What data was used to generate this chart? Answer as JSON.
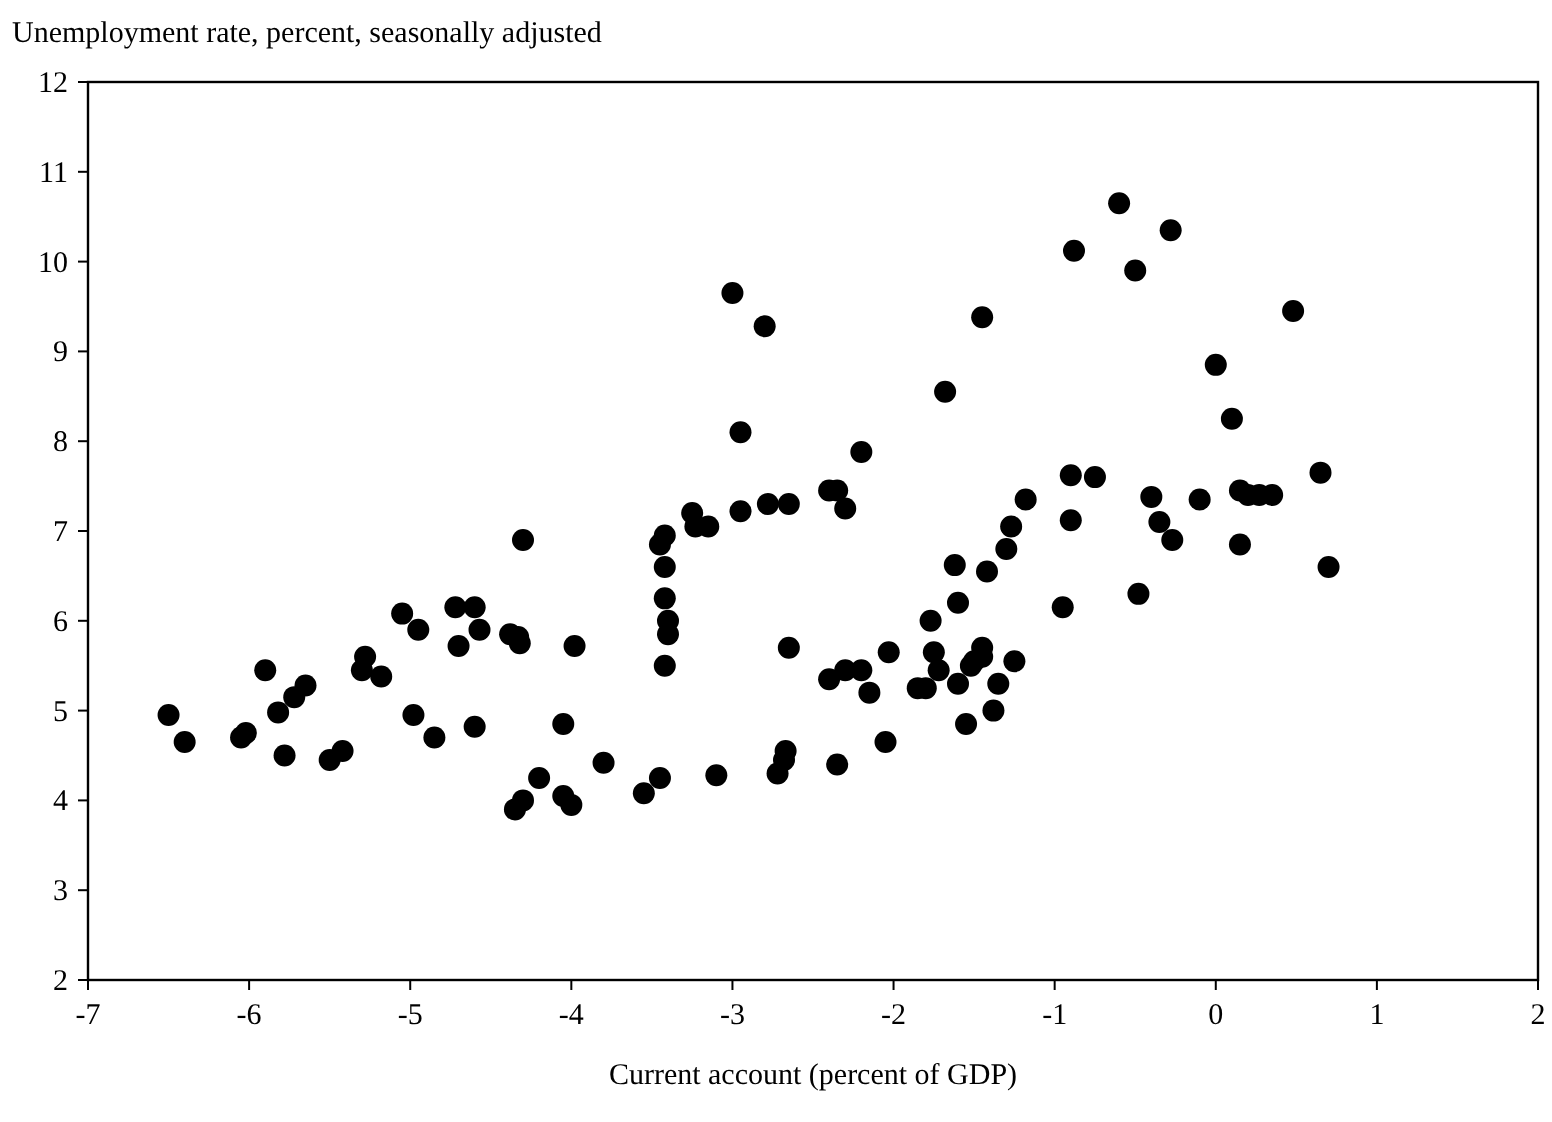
{
  "chart_data": {
    "type": "scatter",
    "ylabel": "Unemployment rate, percent, seasonally adjusted",
    "xlabel": "Current account (percent of GDP)",
    "xlim": [
      -7,
      2
    ],
    "xticks": [
      -7,
      -6,
      -5,
      -4,
      -3,
      -2,
      -1,
      0,
      1,
      2
    ],
    "ylim": [
      2,
      12
    ],
    "yticks": [
      2,
      3,
      4,
      5,
      6,
      7,
      8,
      9,
      10,
      11,
      12
    ],
    "grid": false,
    "marker": "circle",
    "series": [
      {
        "color": "#000000",
        "x": [
          -6.5,
          -6.4,
          -6.05,
          -6.02,
          -5.9,
          -5.82,
          -5.78,
          -5.72,
          -5.65,
          -5.5,
          -5.42,
          -5.3,
          -5.28,
          -5.18,
          -5.05,
          -4.98,
          -4.95,
          -4.85,
          -4.72,
          -4.7,
          -4.6,
          -4.6,
          -4.57,
          -4.38,
          -4.33,
          -4.32,
          -4.3,
          -4.35,
          -4.3,
          -4.2,
          -4.05,
          -4.05,
          -4.0,
          -3.98,
          -3.8,
          -3.55,
          -3.45,
          -3.45,
          -3.42,
          -3.42,
          -3.42,
          -3.4,
          -3.4,
          -3.42,
          -3.25,
          -3.23,
          -3.15,
          -3.1,
          -3.0,
          -2.95,
          -2.95,
          -2.8,
          -2.78,
          -2.72,
          -2.68,
          -2.67,
          -2.65,
          -2.65,
          -2.4,
          -2.35,
          -2.3,
          -2.2,
          -2.35,
          -2.4,
          -2.3,
          -2.2,
          -2.15,
          -2.05,
          -2.03,
          -1.85,
          -1.8,
          -1.77,
          -1.75,
          -1.72,
          -1.68,
          -1.62,
          -1.6,
          -1.6,
          -1.55,
          -1.52,
          -1.5,
          -1.45,
          -1.45,
          -1.45,
          -1.42,
          -1.38,
          -1.35,
          -1.3,
          -1.27,
          -1.25,
          -1.18,
          -0.95,
          -0.9,
          -0.9,
          -0.88,
          -0.75,
          -0.6,
          -0.5,
          -0.48,
          -0.4,
          -0.35,
          -0.28,
          -0.27,
          -0.1,
          0.0,
          0.1,
          0.15,
          0.15,
          0.2,
          0.27,
          0.35,
          0.48,
          0.65,
          0.7
        ],
        "values": [
          4.95,
          4.65,
          4.7,
          4.75,
          5.45,
          4.98,
          4.5,
          5.15,
          5.28,
          4.45,
          4.55,
          5.45,
          5.6,
          5.38,
          6.08,
          4.95,
          5.9,
          4.7,
          6.15,
          5.72,
          6.15,
          4.82,
          5.9,
          5.85,
          5.82,
          5.75,
          6.9,
          3.9,
          4.0,
          4.25,
          4.85,
          4.05,
          3.95,
          5.72,
          4.42,
          4.08,
          4.25,
          6.85,
          6.95,
          6.6,
          6.25,
          6.0,
          5.85,
          5.5,
          7.2,
          7.05,
          7.05,
          4.28,
          9.65,
          8.1,
          7.22,
          9.28,
          7.3,
          4.3,
          4.45,
          4.55,
          7.3,
          5.7,
          7.45,
          7.45,
          7.25,
          7.88,
          4.4,
          5.35,
          5.45,
          5.45,
          5.2,
          4.65,
          5.65,
          5.25,
          5.25,
          6.0,
          5.65,
          5.45,
          8.55,
          6.62,
          6.2,
          5.3,
          4.85,
          5.5,
          5.55,
          5.7,
          5.6,
          9.38,
          6.55,
          5.0,
          5.3,
          6.8,
          7.05,
          5.55,
          7.35,
          6.15,
          7.62,
          7.12,
          10.12,
          7.6,
          10.65,
          9.9,
          6.3,
          7.38,
          7.1,
          10.35,
          6.9,
          7.35,
          8.85,
          8.25,
          7.45,
          6.85,
          7.4,
          7.4,
          7.4,
          9.45,
          7.65,
          6.6
        ]
      }
    ]
  }
}
